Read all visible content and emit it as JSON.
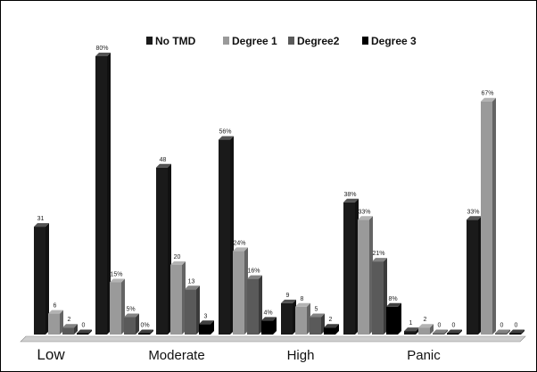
{
  "chart_data": {
    "type": "bar",
    "title": "",
    "xlabel": "",
    "ylabel": "",
    "ylim": [
      0,
      80
    ],
    "grid": false,
    "legend_position": "top",
    "legend": [
      "No TMD",
      "Degree 1",
      "Degree2",
      "Degree 3"
    ],
    "colors": [
      "#1a1a1a",
      "#9a9a9a",
      "#5a5a5a",
      "#000000"
    ],
    "groups": [
      {
        "category": "Low",
        "values": [
          31,
          6,
          2,
          0
        ],
        "labels": [
          "31",
          "6",
          "2",
          "0"
        ]
      },
      {
        "category": "",
        "values": [
          80,
          15,
          5,
          0
        ],
        "labels": [
          "80%",
          "15%",
          "5%",
          "0%"
        ]
      },
      {
        "category": "Moderate",
        "values": [
          48,
          20,
          13,
          3
        ],
        "labels": [
          "48",
          "20",
          "13",
          "3"
        ]
      },
      {
        "category": "",
        "values": [
          56,
          24,
          16,
          4
        ],
        "labels": [
          "56%",
          "24%",
          "16%",
          "4%"
        ]
      },
      {
        "category": "High",
        "values": [
          9,
          8,
          5,
          2
        ],
        "labels": [
          "9",
          "8",
          "5",
          "2"
        ]
      },
      {
        "category": "",
        "values": [
          38,
          33,
          21,
          8
        ],
        "labels": [
          "38%",
          "33%",
          "21%",
          "8%"
        ]
      },
      {
        "category": "Panic",
        "values": [
          1,
          2,
          0,
          0
        ],
        "labels": [
          "1",
          "2",
          "0",
          "0"
        ]
      },
      {
        "category": "",
        "values": [
          33,
          67,
          0,
          0
        ],
        "labels": [
          "33%",
          "67%",
          "0",
          "0"
        ]
      }
    ]
  }
}
